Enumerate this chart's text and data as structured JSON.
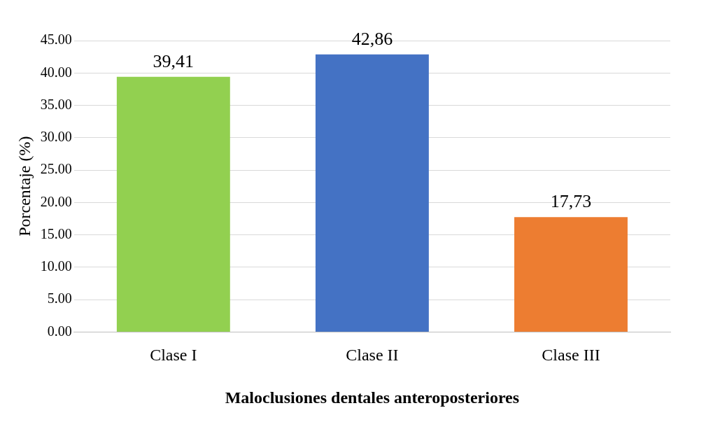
{
  "chart_data": {
    "type": "bar",
    "xlabel": "Maloclusiones dentales anteroposteriores",
    "ylabel": "Porcentaje (%)",
    "categories": [
      "Clase I",
      "Clase II",
      "Clase III"
    ],
    "values": [
      39.41,
      42.86,
      17.73
    ],
    "colors": [
      "#92d050",
      "#4472c4",
      "#ed7d31"
    ],
    "value_labels": [
      "39,41",
      "42,86",
      "17,73"
    ],
    "ylim": [
      0,
      45
    ],
    "yticks": [
      {
        "value": 0,
        "label": "0.00"
      },
      {
        "value": 5,
        "label": "5.00"
      },
      {
        "value": 10,
        "label": "10.00"
      },
      {
        "value": 15,
        "label": "15.00"
      },
      {
        "value": 20,
        "label": "20.00"
      },
      {
        "value": 25,
        "label": "25.00"
      },
      {
        "value": 30,
        "label": "30.00"
      },
      {
        "value": 35,
        "label": "35.00"
      },
      {
        "value": 40,
        "label": "40.00"
      },
      {
        "value": 45,
        "label": "45.00"
      }
    ],
    "grid": "y",
    "legend": false
  }
}
